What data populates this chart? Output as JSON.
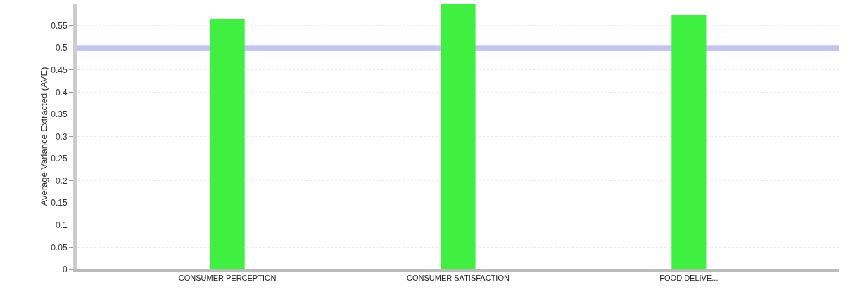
{
  "chart_data": {
    "type": "bar",
    "ylabel": "Average Variance Extracted (AVE)",
    "categories": [
      "CONSUMER PERCEPTION",
      "CONSUMER SATISFACTION",
      "FOOD DELIVE..."
    ],
    "values": [
      0.565,
      0.6,
      0.573
    ],
    "color": "#40f040",
    "ylim": [
      0,
      0.6
    ],
    "yticks": [
      0,
      0.05,
      0.1,
      0.15,
      0.2,
      0.25,
      0.3,
      0.35,
      0.4,
      0.45,
      0.5,
      0.55
    ],
    "grid": "y",
    "ref_lines": [
      {
        "axis": "y",
        "value": 0.5,
        "color": "#c4c4f4"
      }
    ]
  }
}
